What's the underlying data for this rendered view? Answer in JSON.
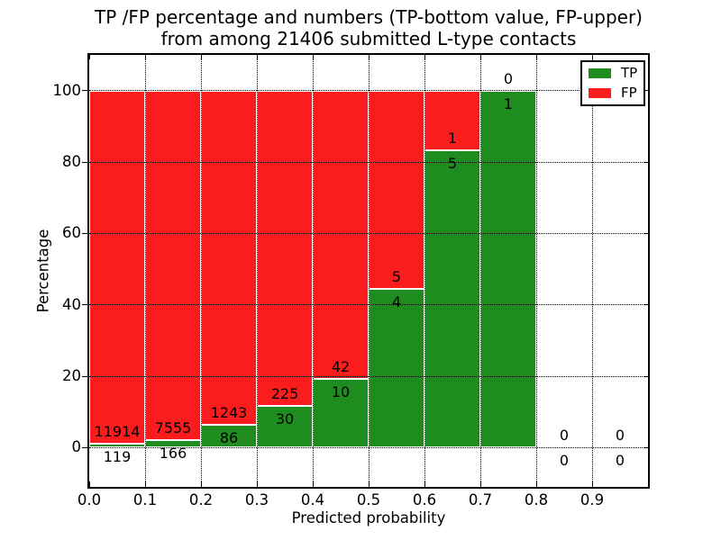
{
  "chart_data": {
    "type": "bar",
    "stacked": true,
    "title_line1": "TP /FP percentage and numbers (TP-bottom value, FP-upper)",
    "title_line2": "from among 21406 submitted L-type contacts",
    "xlabel": "Predicted probability",
    "ylabel": "Percentage",
    "total_contacts": 21406,
    "x_tick_labels": [
      "0.0",
      "0.1",
      "0.2",
      "0.3",
      "0.4",
      "0.5",
      "0.6",
      "0.7",
      "0.8",
      "0.9"
    ],
    "x_tick_values": [
      0.0,
      0.1,
      0.2,
      0.3,
      0.4,
      0.5,
      0.6,
      0.7,
      0.8,
      0.9,
      1.0
    ],
    "y_ticks": [
      0,
      20,
      40,
      60,
      80,
      100
    ],
    "y_tick_labels": [
      "0",
      "20",
      "40",
      "60",
      "80",
      "100"
    ],
    "xlim": [
      0.0,
      1.0
    ],
    "ylim": [
      -11,
      110
    ],
    "grid": "dotted both axes",
    "legend_position": "upper right",
    "annotation_note": "FP count above segment boundary, TP count below it",
    "bins": [
      {
        "range": "0.0-0.1",
        "x0": 0.0,
        "x1": 0.1,
        "tp": 119,
        "fp": 11914
      },
      {
        "range": "0.1-0.2",
        "x0": 0.1,
        "x1": 0.2,
        "tp": 166,
        "fp": 7555
      },
      {
        "range": "0.2-0.3",
        "x0": 0.2,
        "x1": 0.3,
        "tp": 86,
        "fp": 1243
      },
      {
        "range": "0.3-0.4",
        "x0": 0.3,
        "x1": 0.4,
        "tp": 30,
        "fp": 225
      },
      {
        "range": "0.4-0.5",
        "x0": 0.4,
        "x1": 0.5,
        "tp": 10,
        "fp": 42
      },
      {
        "range": "0.5-0.6",
        "x0": 0.5,
        "x1": 0.6,
        "tp": 4,
        "fp": 5
      },
      {
        "range": "0.6-0.7",
        "x0": 0.6,
        "x1": 0.7,
        "tp": 5,
        "fp": 1
      },
      {
        "range": "0.7-0.8",
        "x0": 0.7,
        "x1": 0.8,
        "tp": 1,
        "fp": 0
      },
      {
        "range": "0.8-0.9",
        "x0": 0.8,
        "x1": 0.9,
        "tp": 0,
        "fp": 0
      },
      {
        "range": "0.9-1.0",
        "x0": 0.9,
        "x1": 1.0,
        "tp": 0,
        "fp": 0
      }
    ],
    "legend": [
      {
        "label": "TP",
        "color": "#1e8c1e"
      },
      {
        "label": "FP",
        "color": "#fb1d1d"
      }
    ]
  }
}
